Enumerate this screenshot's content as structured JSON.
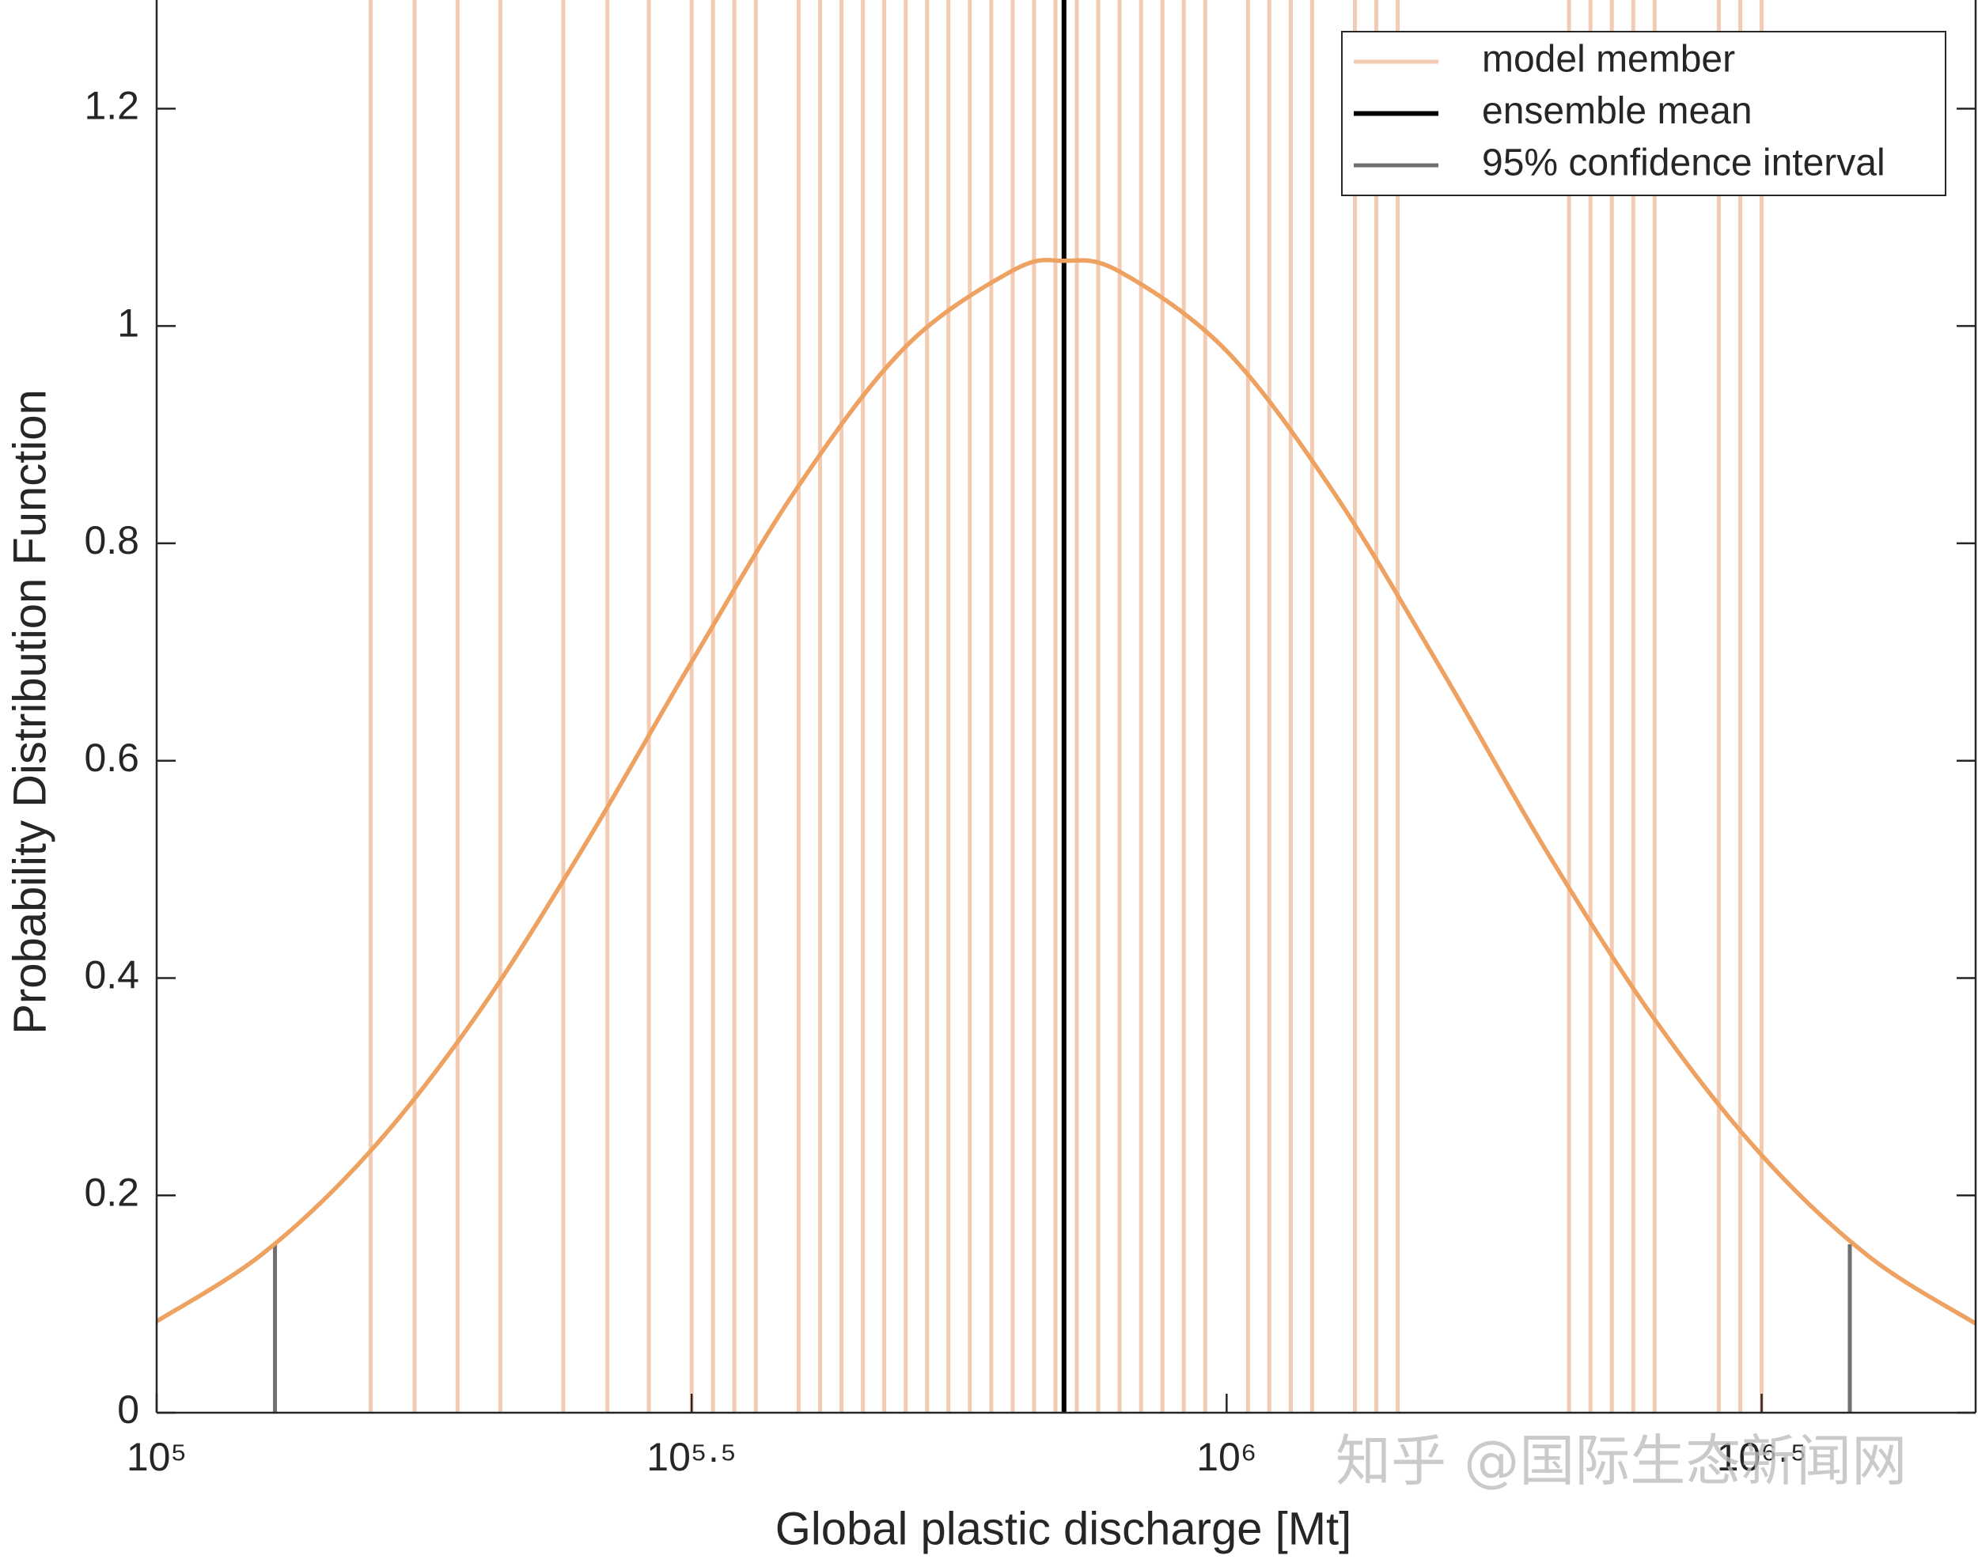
{
  "chart_data": {
    "type": "line",
    "xlabel": "Global plastic discharge [Mt]",
    "ylabel": "Probability Distribution Function",
    "xscale": "log",
    "xlim": [
      100000,
      5011872
    ],
    "ylim": [
      0,
      1.3
    ],
    "xticks": [
      {
        "value": 100000,
        "label": "10⁵"
      },
      {
        "value": 316228,
        "label": "10⁵·⁵"
      },
      {
        "value": 1000000,
        "label": "10⁶"
      },
      {
        "value": 3162278,
        "label": "10⁶·⁵"
      }
    ],
    "yticks": [
      0,
      0.2,
      0.4,
      0.6,
      0.8,
      1,
      1.2
    ],
    "legend": "upper right",
    "series": [
      {
        "name": "model member",
        "color": "#f3cbb2",
        "width": 5,
        "x": [
          158489,
          174200,
          191100,
          209500,
          239900,
          263800,
          288400,
          316200,
          331100,
          346700,
          363100,
          398100,
          416900,
          436500,
          457100,
          478600,
          501200,
          524800,
          549500,
          575400,
          602600,
          631000,
          660700,
          691800,
          724400,
          758600,
          794300,
          831800,
          871000,
          912000,
          955000,
          1047000,
          1096000,
          1148000,
          1202000,
          1318000,
          1380000,
          1445000,
          2089000,
          2188000,
          2291000,
          2399000,
          2512000,
          2884000,
          3020000,
          3162000
        ]
      },
      {
        "name": "ensemble mean",
        "color": "#000000",
        "width": 6,
        "x": [
          704693
        ]
      },
      {
        "name": "95% confidence interval",
        "color": "#707070",
        "width": 5,
        "x": [
          129000,
          3823000
        ],
        "values": [
          0.155,
          0.155
        ]
      }
    ],
    "curve": {
      "color": "#eea262",
      "width": 5.5,
      "x": [
        100000,
        125893,
        158489,
        199526,
        251189,
        316228,
        398107,
        501187,
        630957,
        704693,
        794328,
        1000000,
        1258925,
        1584893,
        1995262,
        2511886,
        3162278,
        3981072,
        5011872
      ],
      "values": [
        0.084,
        0.147,
        0.241,
        0.367,
        0.522,
        0.691,
        0.853,
        0.981,
        1.051,
        1.06,
        1.05,
        0.977,
        0.847,
        0.685,
        0.515,
        0.362,
        0.237,
        0.144,
        0.082
      ]
    },
    "watermark": "知乎 @国际生态新闻网"
  }
}
